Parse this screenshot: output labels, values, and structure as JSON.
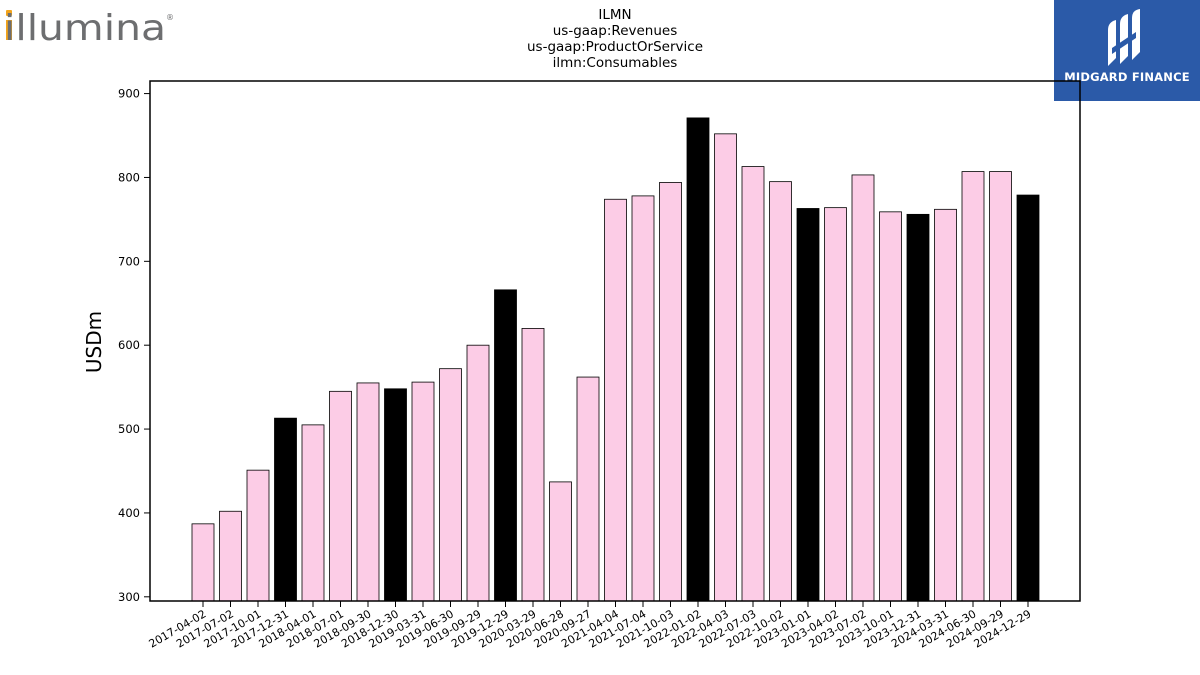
{
  "logos": {
    "left_brand": "illumina",
    "right_brand": "MIDGARD FINANCE",
    "right_bg_color": "#2b5aa8",
    "left_accent_color": "#f3a41b",
    "left_text_color": "#6d6e70"
  },
  "chart_data": {
    "type": "bar",
    "title_lines": [
      "ILMN",
      "us-gaap:Revenues",
      "us-gaap:ProductOrService",
      "ilmn:Consumables"
    ],
    "xlabel": "",
    "ylabel": "USDm",
    "ylim": [
      295,
      915
    ],
    "yticks": [
      300,
      400,
      500,
      600,
      700,
      800,
      900
    ],
    "grid": false,
    "colors": {
      "quarter": "#fccce6",
      "year_end": "#000000",
      "edge": "#000000"
    },
    "categories": [
      "2017-04-02",
      "2017-07-02",
      "2017-10-01",
      "2017-12-31",
      "2018-04-01",
      "2018-07-01",
      "2018-09-30",
      "2018-12-30",
      "2019-03-31",
      "2019-06-30",
      "2019-09-29",
      "2019-12-29",
      "2020-03-29",
      "2020-06-28",
      "2020-09-27",
      "2021-04-04",
      "2021-07-04",
      "2021-10-03",
      "2022-01-02",
      "2022-04-03",
      "2022-07-03",
      "2022-10-02",
      "2023-01-01",
      "2023-04-02",
      "2023-07-02",
      "2023-10-01",
      "2023-12-31",
      "2024-03-31",
      "2024-06-30",
      "2024-09-29",
      "2024-12-29"
    ],
    "values": [
      387,
      402,
      451,
      513,
      505,
      545,
      555,
      548,
      556,
      572,
      600,
      666,
      620,
      437,
      562,
      774,
      778,
      794,
      871,
      852,
      813,
      795,
      763,
      764,
      803,
      759,
      756,
      762,
      807,
      807,
      779
    ],
    "highlight": [
      false,
      false,
      false,
      true,
      false,
      false,
      false,
      true,
      false,
      false,
      false,
      true,
      false,
      false,
      false,
      false,
      false,
      false,
      true,
      false,
      false,
      false,
      true,
      false,
      false,
      false,
      true,
      false,
      false,
      false,
      true
    ]
  }
}
